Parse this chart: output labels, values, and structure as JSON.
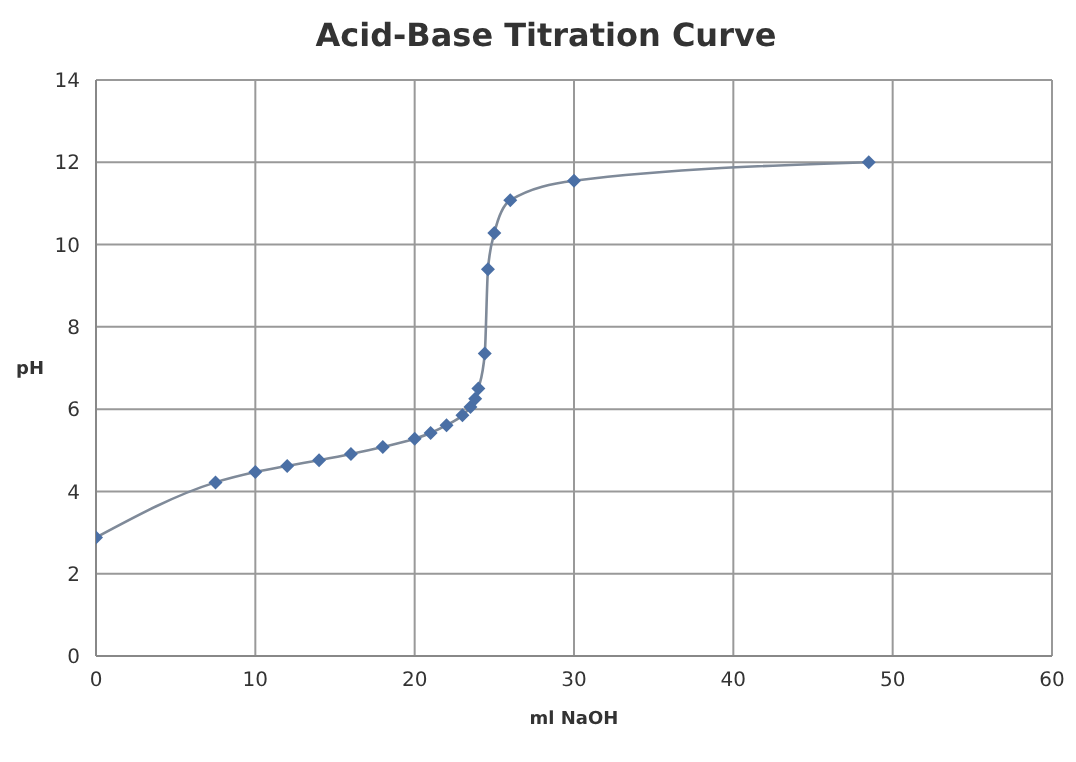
{
  "chart_data": {
    "type": "line",
    "title": "Acid-Base Titration Curve",
    "xlabel": "ml NaOH",
    "ylabel": "pH",
    "x": [
      0,
      7.5,
      10,
      12,
      14,
      16,
      18,
      20,
      21,
      22,
      23,
      23.5,
      23.8,
      24,
      24.4,
      24.6,
      25,
      26,
      30,
      48.5
    ],
    "series": [
      {
        "color": "#4a6fa5",
        "values": [
          2.88,
          4.22,
          4.47,
          4.62,
          4.76,
          4.91,
          5.08,
          5.28,
          5.42,
          5.61,
          5.85,
          6.05,
          6.25,
          6.5,
          7.35,
          9.4,
          10.28,
          11.08,
          11.55,
          12.0
        ]
      }
    ],
    "xlim": [
      0,
      60
    ],
    "xticks": [
      0,
      10,
      20,
      30,
      40,
      50,
      60
    ],
    "ylim": [
      0,
      14
    ],
    "yticks": [
      0,
      2,
      4,
      6,
      8,
      10,
      12,
      14
    ],
    "grid": true,
    "marker": "diamond",
    "line_style": "solid"
  }
}
